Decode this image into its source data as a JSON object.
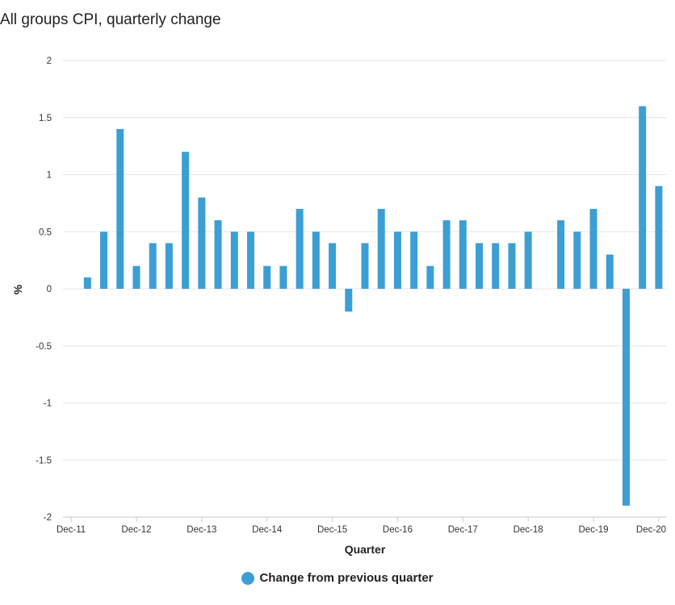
{
  "chart_data": {
    "type": "bar",
    "title": "All groups CPI, quarterly change",
    "xlabel": "Quarter",
    "ylabel": "%",
    "ylim": [
      -2,
      2
    ],
    "yticks": [
      2,
      1.5,
      1,
      0.5,
      0,
      -0.5,
      -1,
      -1.5,
      -2
    ],
    "ytick_labels": [
      "2",
      "1.5",
      "1",
      "0.5",
      "0",
      "-0.5",
      "-1",
      "-1.5",
      "-2"
    ],
    "categories": [
      "Dec-11",
      "Mar-12",
      "Jun-12",
      "Sep-12",
      "Dec-12",
      "Mar-13",
      "Jun-13",
      "Sep-13",
      "Dec-13",
      "Mar-14",
      "Jun-14",
      "Sep-14",
      "Dec-14",
      "Mar-15",
      "Jun-15",
      "Sep-15",
      "Dec-15",
      "Mar-16",
      "Jun-16",
      "Sep-16",
      "Dec-16",
      "Mar-17",
      "Jun-17",
      "Sep-17",
      "Dec-17",
      "Mar-18",
      "Jun-18",
      "Sep-18",
      "Dec-18",
      "Mar-19",
      "Jun-19",
      "Sep-19",
      "Dec-19",
      "Mar-20",
      "Jun-20",
      "Sep-20",
      "Dec-20"
    ],
    "x_tick_labels": [
      "Dec-11",
      "Dec-12",
      "Dec-13",
      "Dec-14",
      "Dec-15",
      "Dec-16",
      "Dec-17",
      "Dec-18",
      "Dec-19",
      "Dec-20"
    ],
    "series": [
      {
        "name": "Change from previous quarter",
        "color": "#3b9fd4",
        "values": [
          null,
          0.1,
          0.5,
          1.4,
          0.2,
          0.4,
          0.4,
          1.2,
          0.8,
          0.6,
          0.5,
          0.5,
          0.2,
          0.2,
          0.7,
          0.5,
          0.4,
          -0.2,
          0.4,
          0.7,
          0.5,
          0.5,
          0.2,
          0.6,
          0.6,
          0.4,
          0.4,
          0.4,
          0.5,
          0.0,
          0.6,
          0.5,
          0.7,
          0.3,
          -1.9,
          1.6,
          0.9
        ]
      }
    ],
    "legend": {
      "label": "Change from previous quarter",
      "position": "bottom"
    },
    "grid": true
  }
}
